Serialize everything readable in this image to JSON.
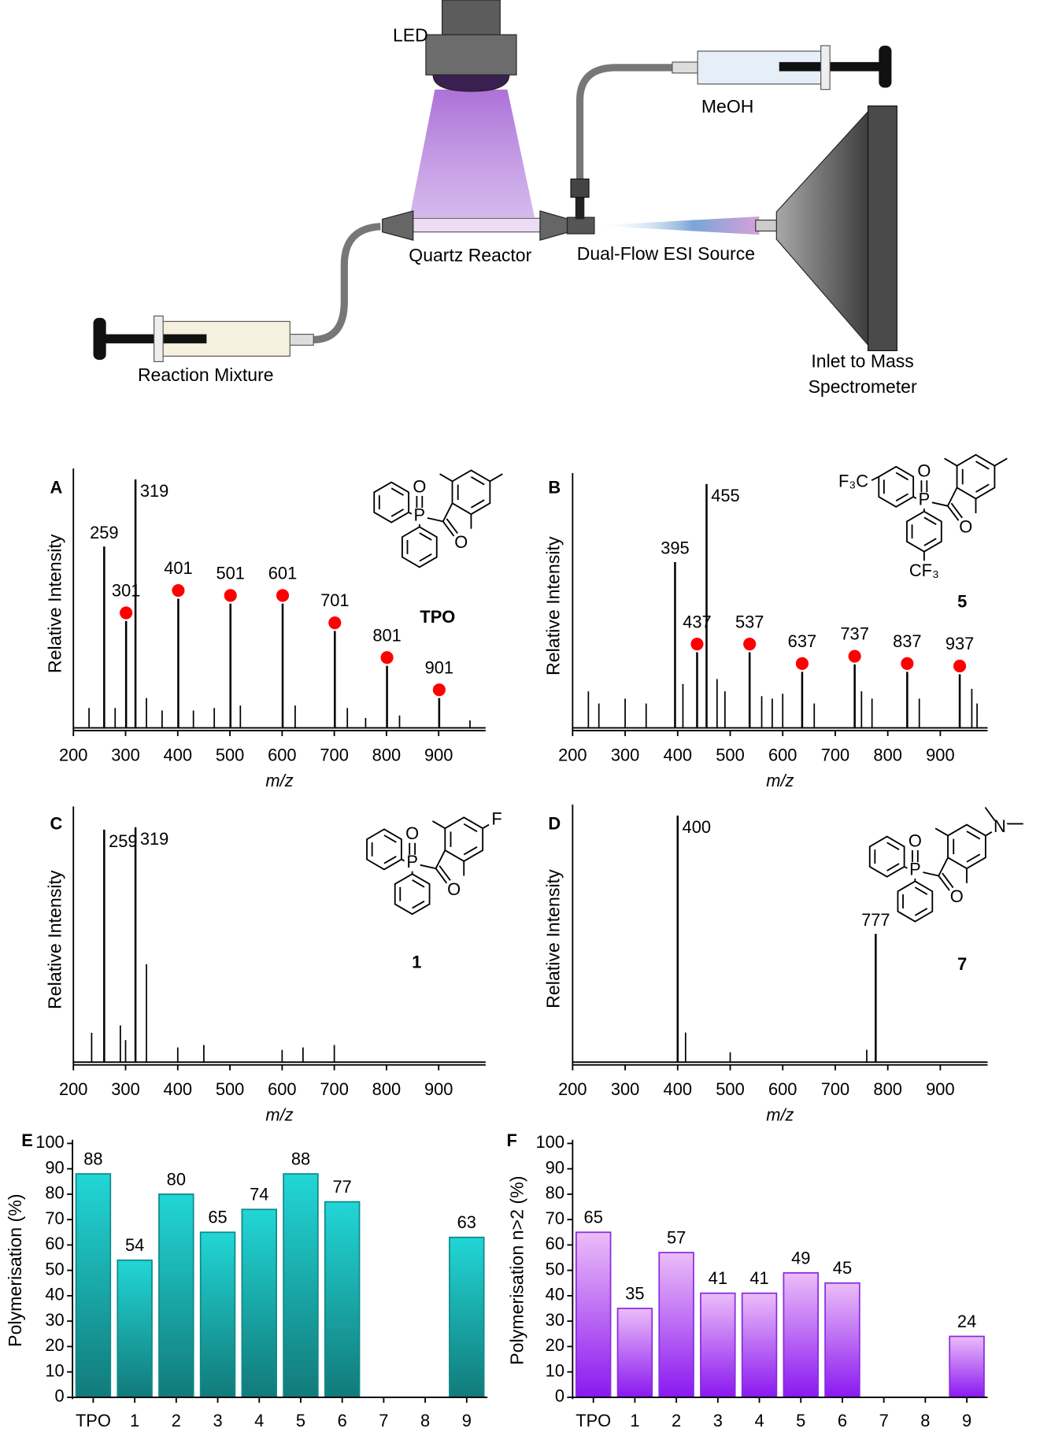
{
  "diagram": {
    "labels": [
      "LED",
      "MeOH",
      "Quartz Reactor",
      "Dual-Flow ESI Source",
      "Reaction Mixture",
      "Inlet to Mass",
      "Spectrometer"
    ]
  },
  "chart_data": [
    {
      "type": "spectrum",
      "panel": "A",
      "xlabel": "m/z",
      "ylabel": "Relative Intensity",
      "xlim": [
        200,
        990
      ],
      "xticks": [
        200,
        300,
        400,
        500,
        600,
        700,
        800,
        900
      ],
      "ylim": [
        0,
        100
      ],
      "series": [
        {
          "color": "#000000",
          "label_color": "#000000",
          "x": [
            259,
            319
          ],
          "values": [
            73,
            100
          ]
        },
        {
          "color": "#000000",
          "label_color": "#ff0000",
          "marker": "circle",
          "marker_color": "#ff0000",
          "x": [
            301,
            401,
            501,
            601,
            701,
            801,
            901
          ],
          "values": [
            43,
            52,
            50,
            50,
            39,
            25,
            12
          ]
        },
        {
          "color": "#000000",
          "x": [
            230,
            280,
            340,
            370,
            430,
            470,
            520,
            625,
            725,
            760,
            825,
            960
          ],
          "values": [
            8,
            8,
            12,
            7,
            7,
            8,
            9,
            9,
            8,
            4,
            5,
            3
          ]
        }
      ],
      "structure": {
        "atoms": [
          "O",
          "P",
          "O"
        ],
        "name": "TPO"
      }
    },
    {
      "type": "spectrum",
      "panel": "B",
      "xlabel": "m/z",
      "ylabel": "Relative Intensity",
      "xlim": [
        200,
        990
      ],
      "xticks": [
        200,
        300,
        400,
        500,
        600,
        700,
        800,
        900
      ],
      "ylim": [
        0,
        100
      ],
      "series": [
        {
          "color": "#000000",
          "label_color": "#000000",
          "x": [
            395,
            455
          ],
          "values": [
            68,
            100
          ]
        },
        {
          "color": "#000000",
          "label_color": "#ff0000",
          "marker": "circle",
          "marker_color": "#ff0000",
          "x": [
            437,
            537,
            637,
            737,
            837,
            937
          ],
          "values": [
            31,
            31,
            23,
            26,
            23,
            22
          ]
        },
        {
          "color": "#000000",
          "x": [
            230,
            250,
            300,
            340,
            410,
            475,
            490,
            560,
            580,
            600,
            660,
            750,
            770,
            860,
            960,
            970
          ],
          "values": [
            15,
            10,
            12,
            10,
            18,
            20,
            15,
            13,
            12,
            14,
            10,
            15,
            12,
            12,
            16,
            10
          ]
        }
      ],
      "structure": {
        "atoms": [
          "O",
          "P",
          "O",
          "F₃C",
          "CF₃"
        ],
        "name": "5"
      }
    },
    {
      "type": "spectrum",
      "panel": "C",
      "xlabel": "m/z",
      "ylabel": "Relative Intensity",
      "xlim": [
        200,
        990
      ],
      "xticks": [
        200,
        300,
        400,
        500,
        600,
        700,
        800,
        900
      ],
      "ylim": [
        0,
        100
      ],
      "series": [
        {
          "color": "#000000",
          "label_color": "#000000",
          "x": [
            259,
            319
          ],
          "values": [
            95,
            96
          ]
        },
        {
          "color": "#000000",
          "x": [
            235,
            290,
            300,
            340,
            400,
            450,
            600,
            640,
            700
          ],
          "values": [
            12,
            15,
            9,
            40,
            6,
            7,
            5,
            6,
            7
          ]
        }
      ],
      "structure": {
        "atoms": [
          "F",
          "O",
          "P",
          "O"
        ],
        "name": "1"
      }
    },
    {
      "type": "spectrum",
      "panel": "D",
      "xlabel": "m/z",
      "ylabel": "Relative Intensity",
      "xlim": [
        200,
        990
      ],
      "xticks": [
        200,
        300,
        400,
        500,
        600,
        700,
        800,
        900
      ],
      "ylim": [
        0,
        100
      ],
      "series": [
        {
          "color": "#000000",
          "label_color": "#000000",
          "x": [
            400,
            777
          ],
          "values": [
            100,
            52
          ]
        },
        {
          "color": "#000000",
          "x": [
            415,
            500,
            760
          ],
          "values": [
            12,
            4,
            5
          ]
        }
      ],
      "structure": {
        "atoms": [
          "N",
          "O",
          "P",
          "O"
        ],
        "name": "7"
      }
    },
    {
      "type": "bar",
      "panel": "E",
      "ylabel": "Polymerisation (%)",
      "categories": [
        "TPO",
        "1",
        "2",
        "3",
        "4",
        "5",
        "6",
        "7",
        "8",
        "9"
      ],
      "values": [
        88,
        54,
        80,
        65,
        74,
        88,
        77,
        null,
        null,
        63
      ],
      "color": "#0e8a8a",
      "gradient": [
        "#22d6d6",
        "#127a7a"
      ],
      "ylim": [
        0,
        100
      ],
      "yticks": [
        0,
        10,
        20,
        30,
        40,
        50,
        60,
        70,
        80,
        90,
        100
      ]
    },
    {
      "type": "bar",
      "panel": "F",
      "ylabel": "Polymerisation n>2 (%)",
      "categories": [
        "TPO",
        "1",
        "2",
        "3",
        "4",
        "5",
        "6",
        "7",
        "8",
        "9"
      ],
      "values": [
        65,
        35,
        57,
        41,
        41,
        49,
        45,
        null,
        null,
        24
      ],
      "color": "#8a2be2",
      "gradient": [
        "#ecbdf8",
        "#8a18f0"
      ],
      "ylim": [
        0,
        100
      ],
      "yticks": [
        0,
        10,
        20,
        30,
        40,
        50,
        60,
        70,
        80,
        90,
        100
      ]
    }
  ]
}
